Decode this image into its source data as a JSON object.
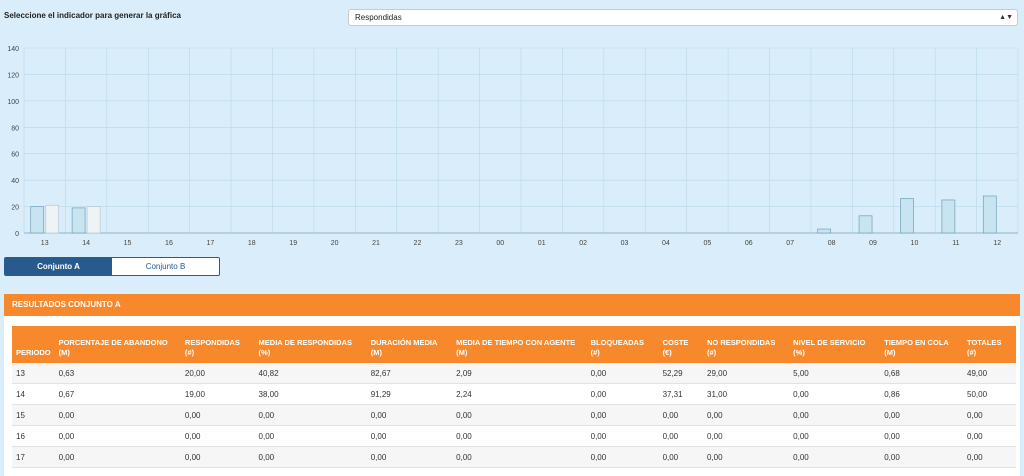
{
  "header": {
    "indicator_label": "Seleccione el indicador para generar la gráfica",
    "indicator_selected": "Respondidas",
    "indicator_arrow": "▲▼"
  },
  "chart_data": {
    "type": "bar",
    "categories": [
      "13",
      "14",
      "15",
      "16",
      "17",
      "18",
      "19",
      "20",
      "21",
      "22",
      "23",
      "00",
      "01",
      "02",
      "03",
      "04",
      "05",
      "06",
      "07",
      "08",
      "09",
      "10",
      "11",
      "12"
    ],
    "series": [
      {
        "values": [
          20,
          19,
          0,
          0,
          0,
          0,
          0,
          0,
          0,
          0,
          0,
          0,
          0,
          0,
          0,
          0,
          0,
          0,
          0,
          3,
          13,
          26,
          25,
          28
        ]
      },
      {
        "values": [
          21,
          20,
          0,
          0,
          0,
          0,
          0,
          0,
          0,
          0,
          0,
          0,
          0,
          0,
          0,
          0,
          0,
          0,
          0,
          0,
          0,
          0,
          0,
          0
        ]
      }
    ],
    "ylim": [
      0,
      140
    ],
    "yticks": [
      0,
      20,
      40,
      60,
      80,
      100,
      120,
      140
    ],
    "grid": true,
    "colors": {
      "series_a": "#c9e4f1",
      "series_a_stroke": "#6f9fb8",
      "series_b": "#eef3f6",
      "series_b_stroke": "#b8c7d0",
      "grid": "#b9d8ea",
      "axis_text": "#444"
    }
  },
  "tabs": [
    {
      "label": "Conjunto A",
      "active": true
    },
    {
      "label": "Conjunto B",
      "active": false
    }
  ],
  "results": {
    "title": "RESULTADOS CONJUNTO A",
    "headers": [
      "PERIODO",
      "PORCENTAJE DE ABANDONO (M)",
      "RESPONDIDAS (#)",
      "MEDIA DE RESPONDIDAS (%)",
      "DURACIÓN MEDIA (M)",
      "MEDIA DE TIEMPO CON AGENTE (M)",
      "BLOQUEADAS (#)",
      "COSTE (€)",
      "NO RESPONDIDAS (#)",
      "NIVEL DE SERVICIO (%)",
      "TIEMPO EN COLA (M)",
      "TOTALES (#)"
    ],
    "rows": [
      [
        "13",
        "0,63",
        "20,00",
        "40,82",
        "82,67",
        "2,09",
        "0,00",
        "52,29",
        "29,00",
        "5,00",
        "0,68",
        "49,00"
      ],
      [
        "14",
        "0,67",
        "19,00",
        "38,00",
        "91,29",
        "2,24",
        "0,00",
        "37,31",
        "31,00",
        "0,00",
        "0,86",
        "50,00"
      ],
      [
        "15",
        "0,00",
        "0,00",
        "0,00",
        "0,00",
        "0,00",
        "0,00",
        "0,00",
        "0,00",
        "0,00",
        "0,00",
        "0,00"
      ],
      [
        "16",
        "0,00",
        "0,00",
        "0,00",
        "0,00",
        "0,00",
        "0,00",
        "0,00",
        "0,00",
        "0,00",
        "0,00",
        "0,00"
      ],
      [
        "17",
        "0,00",
        "0,00",
        "0,00",
        "0,00",
        "0,00",
        "0,00",
        "0,00",
        "0,00",
        "0,00",
        "0,00",
        "0,00"
      ]
    ]
  }
}
